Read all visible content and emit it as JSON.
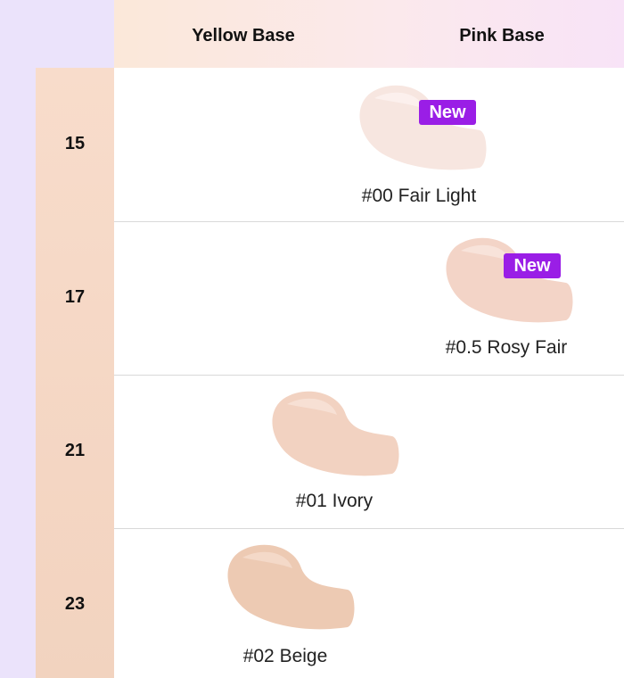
{
  "header": {
    "columns": [
      "Yellow Base",
      "Pink Base"
    ]
  },
  "rows": [
    {
      "level": 15,
      "shade": "#00 Fair Light",
      "badge": "New"
    },
    {
      "level": 17,
      "shade": "#0.5 Rosy Fair",
      "badge": "New"
    },
    {
      "level": 21,
      "shade": "#01 Ivory"
    },
    {
      "level": 23,
      "shade": "#02 Beige"
    }
  ]
}
